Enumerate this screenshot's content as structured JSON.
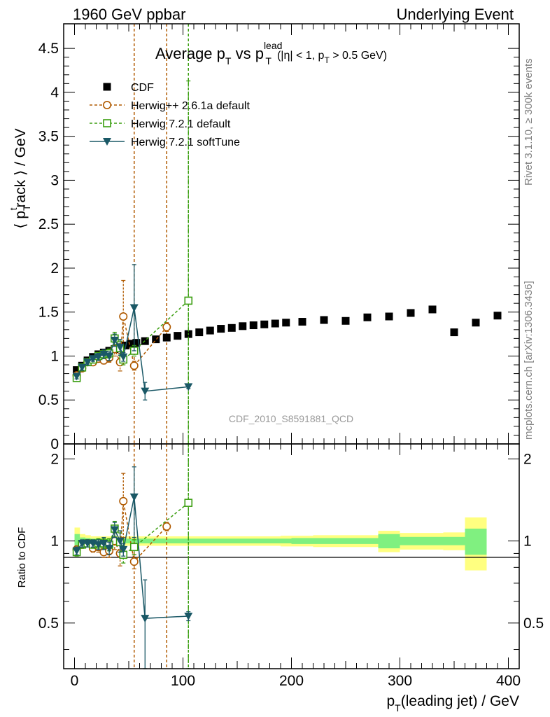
{
  "header": {
    "left": "1960 GeV ppbar",
    "right": "Underlying Event"
  },
  "side_labels": {
    "rivet": "Rivet 3.1.10, ≥ 300k events",
    "mcplots": "mcplots.cern.ch [arXiv:1306.3436]"
  },
  "watermark": "CDF_2010_S8591881_QCD",
  "chart_data": [
    {
      "type": "scatter",
      "panel": "main",
      "title": "Average p_T vs p_T^lead (|η| < 1, p_T > 0.5 GeV)",
      "title_parts": {
        "main": "Average p",
        "sub1": "T",
        "mid": " vs p",
        "sup": "lead",
        "sub2": "T",
        "cut1": "(|η| < 1, p",
        "sub3": "T",
        "cut2": " > 0.5 GeV)"
      },
      "ylabel": "⟨ p_T^track ⟩ / GeV",
      "ylabel_parts": {
        "open": "⟨ p",
        "sub": "T",
        "sup": "t",
        "rest": "rack ⟩ / GeV"
      },
      "xlim": [
        -10,
        410
      ],
      "ylim": [
        0,
        4.78
      ],
      "yticks": [
        "0",
        "0.5",
        "1",
        "1.5",
        "2",
        "2.5",
        "3",
        "3.5",
        "4",
        "4.5"
      ],
      "legend_position": "top-left",
      "series": [
        {
          "name": "CDF",
          "color": "#000000",
          "marker": "square-filled",
          "x": [
            2,
            7,
            12,
            17,
            22,
            27,
            32,
            37,
            42,
            47,
            52,
            57,
            65,
            75,
            85,
            95,
            105,
            115,
            125,
            135,
            145,
            155,
            165,
            175,
            185,
            195,
            210,
            230,
            250,
            270,
            290,
            310,
            330,
            350,
            370,
            390
          ],
          "y": [
            0.84,
            0.89,
            0.95,
            0.99,
            1.02,
            1.04,
            1.06,
            1.08,
            1.1,
            1.12,
            1.14,
            1.15,
            1.17,
            1.19,
            1.21,
            1.23,
            1.25,
            1.27,
            1.29,
            1.31,
            1.32,
            1.34,
            1.35,
            1.36,
            1.37,
            1.38,
            1.39,
            1.41,
            1.4,
            1.44,
            1.45,
            1.49,
            1.53,
            1.27,
            1.38,
            1.46
          ]
        },
        {
          "name": "Herwig++ 2.6.1a default",
          "color": "#b05a00",
          "marker": "circle-open",
          "line": "dashed",
          "x": [
            2,
            7,
            12,
            17,
            22,
            27,
            32,
            37,
            42,
            45,
            55,
            85
          ],
          "y": [
            0.78,
            0.86,
            0.93,
            0.93,
            0.97,
            0.95,
            0.98,
            1.08,
            0.93,
            1.45,
            0.89,
            1.33
          ],
          "err": [
            0.03,
            0.03,
            0.03,
            0.03,
            0.04,
            0.04,
            0.05,
            0.08,
            0.1,
            0.41,
            0.05,
            0.05
          ]
        },
        {
          "name": "Herwig 7.2.1 default",
          "color": "#3b9e10",
          "marker": "square-open",
          "line": "dashed",
          "x": [
            2,
            7,
            12,
            17,
            22,
            27,
            32,
            37,
            42,
            45,
            55,
            105
          ],
          "y": [
            0.75,
            0.87,
            0.93,
            0.96,
            1.0,
            1.02,
            1.03,
            1.2,
            1.09,
            0.96,
            1.06,
            1.63
          ],
          "err": [
            0.03,
            0.03,
            0.03,
            0.03,
            0.04,
            0.04,
            0.05,
            0.07,
            0.08,
            0.06,
            0.06,
            2.5
          ]
        },
        {
          "name": "Herwig 7.2.1 softTune",
          "color": "#1a5866",
          "marker": "triangle-down-filled",
          "line": "solid",
          "x": [
            2,
            7,
            12,
            17,
            22,
            27,
            32,
            37,
            42,
            45,
            55,
            65,
            105
          ],
          "y": [
            0.77,
            0.87,
            0.93,
            0.97,
            0.99,
            1.02,
            1.0,
            1.18,
            1.1,
            0.99,
            1.55,
            0.6,
            0.65
          ],
          "err": [
            0.03,
            0.03,
            0.03,
            0.03,
            0.04,
            0.05,
            0.05,
            0.07,
            0.09,
            0.05,
            0.49,
            0.1,
            0.02
          ]
        }
      ],
      "vlines": [
        {
          "x": 55,
          "color": "#b05a00"
        },
        {
          "x": 85,
          "color": "#b05a00"
        },
        {
          "x": 105,
          "color": "#3b9e10"
        }
      ]
    },
    {
      "type": "scatter",
      "panel": "ratio",
      "ylabel": "Ratio to CDF",
      "xlabel": "p_T(leading jet) / GeV",
      "xlabel_parts": {
        "a": "p",
        "sub": "T",
        "b": "(leading jet) / GeV"
      },
      "xlim": [
        -10,
        410
      ],
      "ylim": [
        0.34,
        2.27
      ],
      "xticks": [
        "0",
        "100",
        "200",
        "300",
        "400"
      ],
      "yticks": [
        "0.5",
        "1",
        "2"
      ],
      "bands": {
        "edges": [
          0,
          5,
          10,
          15,
          20,
          25,
          30,
          35,
          40,
          50,
          60,
          70,
          80,
          90,
          100,
          110,
          120,
          130,
          140,
          150,
          160,
          170,
          180,
          190,
          200,
          220,
          240,
          260,
          280,
          300,
          320,
          340,
          360,
          380,
          400
        ],
        "inner": [
          0.06,
          0.03,
          0.025,
          0.02,
          0.02,
          0.02,
          0.02,
          0.02,
          0.02,
          0.02,
          0.02,
          0.02,
          0.02,
          0.02,
          0.02,
          0.02,
          0.02,
          0.02,
          0.02,
          0.02,
          0.02,
          0.02,
          0.02,
          0.02,
          0.025,
          0.025,
          0.025,
          0.025,
          0.06,
          0.035,
          0.035,
          0.035,
          0.11
        ],
        "outer": [
          0.12,
          0.06,
          0.05,
          0.04,
          0.04,
          0.04,
          0.04,
          0.04,
          0.04,
          0.04,
          0.04,
          0.04,
          0.04,
          0.04,
          0.04,
          0.04,
          0.04,
          0.04,
          0.04,
          0.04,
          0.04,
          0.04,
          0.04,
          0.045,
          0.045,
          0.05,
          0.05,
          0.05,
          0.09,
          0.07,
          0.07,
          0.075,
          0.22
        ],
        "inner_color": "#80f080",
        "outer_color": "#ffff80"
      },
      "series": [
        {
          "name": "Herwig++ 2.6.1a default",
          "color": "#b05a00",
          "marker": "circle-open",
          "line": "dashed",
          "x": [
            2,
            7,
            12,
            17,
            22,
            27,
            32,
            37,
            42,
            45,
            55,
            85
          ],
          "y": [
            0.93,
            0.97,
            0.98,
            0.94,
            0.95,
            0.91,
            0.92,
            1.0,
            0.9,
            1.4,
            0.84,
            1.13
          ],
          "err": [
            0.03,
            0.03,
            0.03,
            0.03,
            0.04,
            0.04,
            0.05,
            0.07,
            0.09,
            0.37,
            0.05,
            0.04
          ]
        },
        {
          "name": "Herwig 7.2.1 default",
          "color": "#3b9e10",
          "marker": "square-open",
          "line": "dashed",
          "x": [
            2,
            7,
            12,
            17,
            22,
            27,
            32,
            37,
            42,
            45,
            55,
            105
          ],
          "y": [
            0.91,
            0.97,
            0.98,
            0.97,
            0.98,
            0.98,
            0.97,
            1.11,
            0.99,
            0.89,
            0.95,
            1.38
          ],
          "err": [
            0.03,
            0.03,
            0.03,
            0.03,
            0.04,
            0.04,
            0.05,
            0.07,
            0.08,
            0.06,
            0.06,
            2.0
          ]
        },
        {
          "name": "Herwig 7.2.1 softTune",
          "color": "#1a5866",
          "marker": "triangle-down-filled",
          "line": "solid",
          "x": [
            2,
            7,
            12,
            17,
            22,
            27,
            32,
            37,
            42,
            45,
            55,
            65,
            105
          ],
          "y": [
            0.92,
            0.98,
            0.98,
            0.98,
            0.97,
            0.98,
            0.94,
            1.1,
            1.0,
            0.93,
            1.45,
            0.52,
            0.53
          ],
          "err": [
            0.03,
            0.03,
            0.03,
            0.03,
            0.04,
            0.05,
            0.05,
            0.07,
            0.09,
            0.05,
            0.42,
            0.2,
            0.02
          ]
        }
      ]
    }
  ]
}
